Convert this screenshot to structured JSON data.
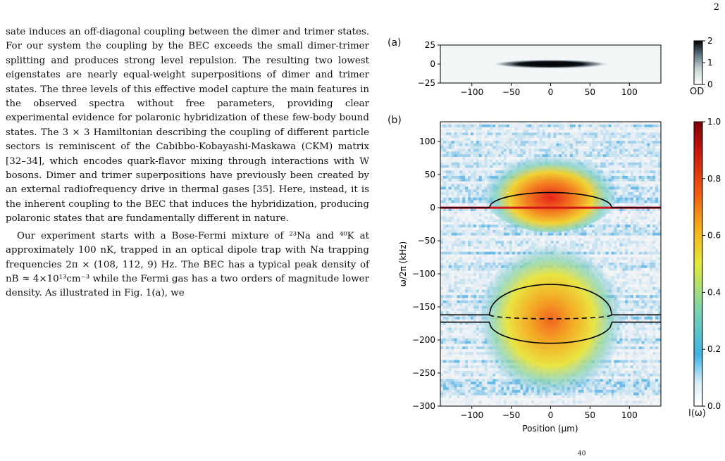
{
  "page": {
    "page_number": "2",
    "paragraphs": [
      "sate induces an off-diagonal coupling between the dimer and trimer states. For our system the coupling by the BEC exceeds the small dimer-trimer splitting and produces strong level repulsion. The resulting two lowest eigenstates are nearly equal-weight superpositions of dimer and trimer states. The three levels of this effective model capture the main features in the observed spectra without free parameters, providing clear experimental evidence for polaronic hybridization of these few-body bound states. The 3 × 3 Hamiltonian describing the coupling of different particle sectors is reminiscent of the Cabibbo-Kobayashi-Maskawa (CKM) matrix [32–34], which encodes quark-flavor mixing through interactions with W bosons. Dimer and trimer superpositions have previously been created by an external radiofrequency drive in thermal gases [35]. Here, instead, it is the inherent coupling to the BEC that induces the hybridization, producing polaronic states that are fundamentally different in nature.",
      "Our experiment starts with a Bose-Fermi mixture of ²³Na and ⁴⁰K at approximately 100 nK, trapped in an optical dipole trap with Na trapping frequencies 2π × (108, 112, 9) Hz. The BEC has a typical peak density of nB ≈ 4×10¹³cm⁻³ while the Fermi gas has a two orders of magnitude lower density. As illustrated in Fig. 1(a), we"
    ],
    "footer_fragment": "40"
  },
  "chart_data": [
    {
      "panel": "(a)",
      "type": "heatmap",
      "title": "",
      "xlabel": "",
      "ylabel": "",
      "xlim": [
        -140,
        140
      ],
      "ylim": [
        25,
        -25
      ],
      "x_ticks": [
        "−100",
        "−50",
        "0",
        "50",
        "100"
      ],
      "y_ticks": [
        "−25",
        "0",
        "25"
      ],
      "colorbar": {
        "label": "OD",
        "range": [
          0,
          2
        ],
        "ticks": [
          "2",
          "1",
          "0"
        ],
        "colormap": "bone_r"
      },
      "description_values": {
        "peak_od": 2,
        "center_x": 0,
        "center_y": 0,
        "half_width_x": 75,
        "half_width_y": 6
      }
    },
    {
      "panel": "(b)",
      "type": "heatmap",
      "title": "",
      "xlabel": "Position (μm)",
      "ylabel": "ω/2π (kHz)",
      "xlim": [
        -140,
        140
      ],
      "ylim": [
        -300,
        130
      ],
      "x_ticks": [
        "−100",
        "−50",
        "0",
        "50",
        "100"
      ],
      "y_ticks": [
        "100",
        "50",
        "0",
        "−50",
        "−100",
        "−150",
        "−200",
        "−250",
        "−300"
      ],
      "colorbar": {
        "label": "I(ω)",
        "range": [
          0,
          1.0
        ],
        "ticks": [
          "1.0",
          "0.8",
          "0.6",
          "0.4",
          "0.2",
          "0.0"
        ],
        "colormap": "jet"
      },
      "red_line_y": 0,
      "upper_branch": {
        "edge_x": 78,
        "peak_y": 23,
        "flat_y": 0
      },
      "lower_branch": {
        "flat_upper_y": -162,
        "flat_lower_y": -173,
        "edge_x": 78,
        "upper_peak_y": -116,
        "lower_min_y": -205,
        "dashed_min_y": -168
      }
    }
  ]
}
